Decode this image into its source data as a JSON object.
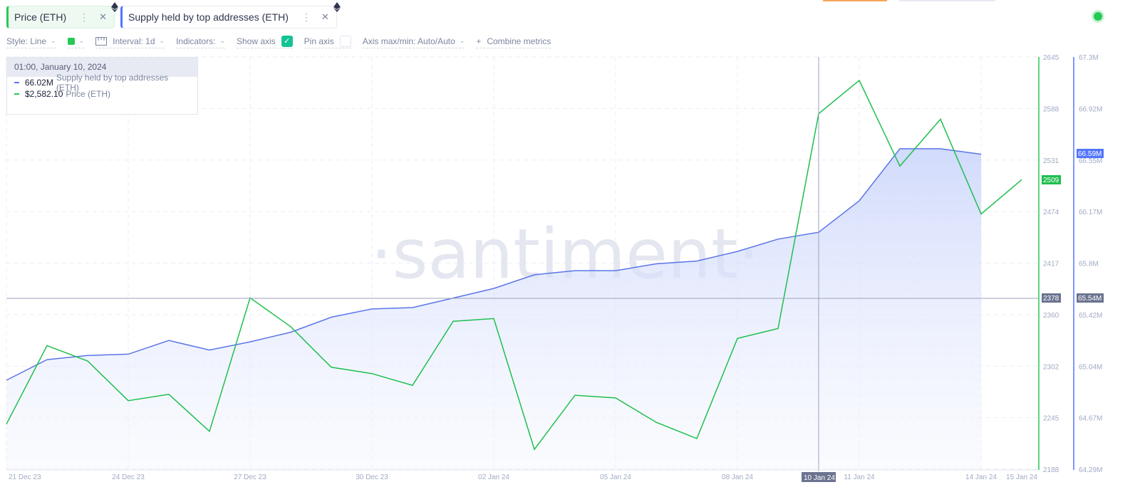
{
  "tabs": [
    {
      "label": "Price (ETH)",
      "color": "#26c953",
      "menu_icon": "kebab-icon",
      "close_icon": "close-icon",
      "asset_icon": "eth-icon"
    },
    {
      "label": "Supply held by top addresses (ETH)",
      "color": "#5275ff",
      "menu_icon": "kebab-icon",
      "close_icon": "close-icon",
      "asset_icon": "eth-icon"
    }
  ],
  "toolbar": {
    "style_label": "Style: Line",
    "color_swatch": "#26c953",
    "interval_label": "Interval: 1d",
    "indicators_label": "Indicators:",
    "show_axis_label": "Show axis",
    "show_axis_checked": true,
    "pin_axis_label": "Pin axis",
    "pin_axis_checked": false,
    "axis_maxmin_label": "Axis max/min: Auto/Auto",
    "combine_label": "Combine metrics",
    "combine_icon": "+"
  },
  "tooltip": {
    "date": "01:00, January 10, 2024",
    "rows": [
      {
        "value": "66.02M",
        "label": "Supply held by top addresses (ETH)",
        "color": "#5275ff"
      },
      {
        "value": "$2,582.10",
        "label": "Price (ETH)",
        "color": "#26c953"
      }
    ]
  },
  "watermark": "·santiment·",
  "cursor": {
    "x_label": "10 Jan 24",
    "price_label": "2378",
    "supply_label": "65.54M"
  },
  "last_values": {
    "price": "2509",
    "supply": "66.59M"
  },
  "chart_data": {
    "type": "line",
    "title": "",
    "xlabel": "",
    "x": [
      "21 Dec 23",
      "22 Dec 23",
      "23 Dec 23",
      "24 Dec 23",
      "25 Dec 23",
      "26 Dec 23",
      "27 Dec 23",
      "28 Dec 23",
      "29 Dec 23",
      "30 Dec 23",
      "31 Dec 23",
      "01 Jan 24",
      "02 Jan 24",
      "03 Jan 24",
      "04 Jan 24",
      "05 Jan 24",
      "06 Jan 24",
      "07 Jan 24",
      "08 Jan 24",
      "09 Jan 24",
      "10 Jan 24",
      "11 Jan 24",
      "12 Jan 24",
      "13 Jan 24",
      "14 Jan 24",
      "15 Jan 24"
    ],
    "x_tick_labels": [
      "21 Dec 23",
      "24 Dec 23",
      "27 Dec 23",
      "30 Dec 23",
      "02 Jan 24",
      "05 Jan 24",
      "08 Jan 24",
      "10 Jan 24",
      "11 Jan 24",
      "14 Jan 24",
      "15 Jan 24"
    ],
    "series": [
      {
        "name": "Price (ETH)",
        "color": "#26c953",
        "axis": "left-right-1",
        "values": [
          2238,
          2325,
          2308,
          2264,
          2271,
          2230,
          2378,
          2346,
          2301,
          2294,
          2281,
          2352,
          2355,
          2210,
          2270,
          2267,
          2240,
          2222,
          2333,
          2344,
          2582.1,
          2619,
          2524,
          2576,
          2471,
          2509
        ]
      },
      {
        "name": "Supply held by top addresses (ETH)",
        "color": "#5275ff",
        "unit": "M",
        "axis": "right-2",
        "values": [
          64.94,
          65.09,
          65.12,
          65.13,
          65.23,
          65.16,
          65.22,
          65.29,
          65.4,
          65.46,
          65.47,
          65.54,
          65.61,
          65.71,
          65.74,
          65.74,
          65.79,
          65.81,
          65.88,
          65.97,
          66.02,
          66.25,
          66.63,
          66.63,
          66.59,
          null
        ]
      }
    ],
    "price_axis": {
      "ticks": [
        "2645",
        "2588",
        "2531",
        "2474",
        "2417",
        "2360",
        "2302",
        "2245",
        "2188"
      ],
      "ylim": [
        2188,
        2645
      ]
    },
    "supply_axis": {
      "ticks": [
        "67.3M",
        "66.92M",
        "66.55M",
        "66.17M",
        "65.8M",
        "65.42M",
        "65.04M",
        "64.67M",
        "64.29M"
      ],
      "ylim": [
        64.29,
        67.3
      ]
    },
    "grid": true,
    "legend_position": "top-left tabs"
  }
}
